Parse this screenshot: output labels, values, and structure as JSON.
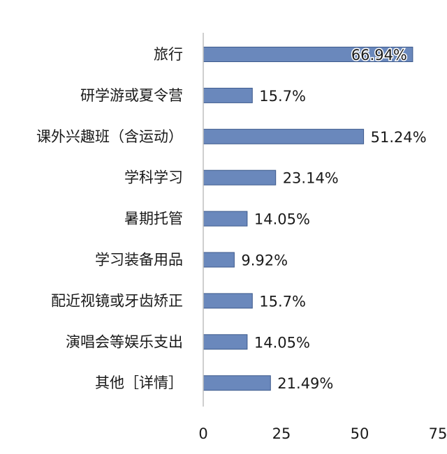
{
  "chart_data": {
    "type": "bar",
    "orientation": "horizontal",
    "categories": [
      "旅行",
      "研学游或夏令营",
      "课外兴趣班（含运动）",
      "学科学习",
      "暑期托管",
      "学习装备用品",
      "配近视镜或牙齿矫正",
      "演唱会等娱乐支出",
      "其他［详情］"
    ],
    "values": [
      66.94,
      15.7,
      51.24,
      23.14,
      14.05,
      9.92,
      15.7,
      14.05,
      21.49
    ],
    "data_labels": [
      "66.94%",
      "15.7%",
      "51.24%",
      "23.14%",
      "14.05%",
      "9.92%",
      "15.7%",
      "14.05%",
      "21.49%"
    ],
    "xlim": [
      0,
      75
    ],
    "xticks": [
      "0",
      "25",
      "50",
      "75"
    ],
    "title": "",
    "xlabel": "",
    "ylabel": "",
    "grid": false,
    "legend": "none",
    "bar_color": "#6a88bc",
    "bar_edge_color": "#3d5a8c"
  }
}
